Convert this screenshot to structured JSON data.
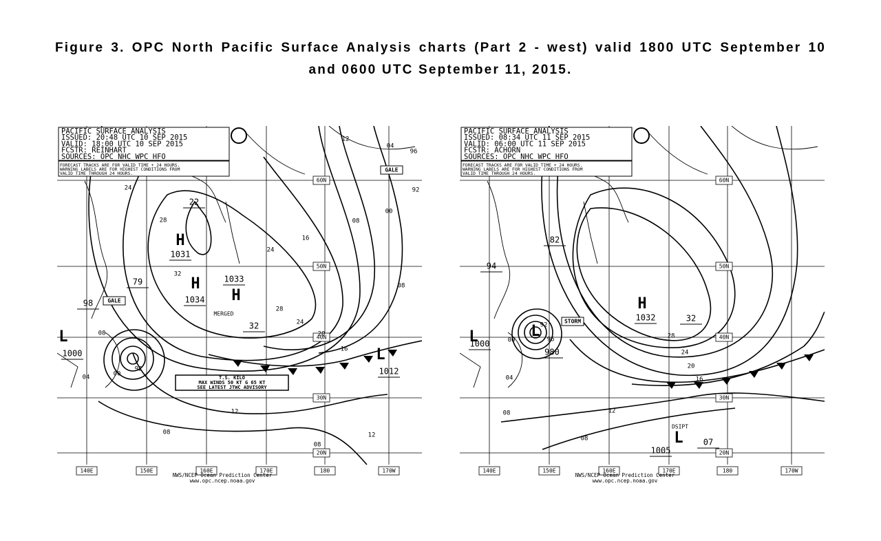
{
  "title": "Figure 3.  OPC North Pacific Surface Analysis charts (Part 2 - west) valid 1800 UTC September 10 and 0600 UTC September 11, 2015.",
  "maps": [
    {
      "header": [
        "PACIFIC SURFACE ANALYSIS",
        "ISSUED: 20:48 UTC 10 SEP 2015",
        "VALID:  18:00 UTC 10 SEP 2015",
        "FCSTR:  REINHART",
        "SOURCES:  OPC NHC WPC HFO"
      ],
      "warning": [
        "FORECAST TRACKS ARE FOR VALID TIME + 24 HOURS.",
        "WARNING LABELS ARE FOR HIGHEST CONDITIONS FROM",
        "VALID TIME THROUGH 24 HOURS."
      ],
      "lat_labels": [
        "60N",
        "50N",
        "40N",
        "30N",
        "20N"
      ],
      "lon_labels": [
        "140E",
        "150E",
        "160E",
        "170E",
        "180",
        "170W"
      ],
      "footer": [
        "NWS/NCEP  Ocean Prediction Center",
        "www.opc.ncep.noaa.gov"
      ],
      "storm_box": [
        "T.S. KILO",
        "MAX WINDS 50 KT G 65 KT",
        "SEE LATEST JTWC ADVISORY"
      ],
      "labels": [
        "H",
        "1031",
        "H",
        "1034",
        "1033",
        "H",
        "MERGED",
        "22",
        "79",
        "98",
        "L",
        "1000",
        "L",
        "1012",
        "32",
        "24",
        "28",
        "32",
        "24",
        "24",
        "28",
        "16",
        "08",
        "08",
        "04",
        "00",
        "96",
        "92",
        "12",
        "20",
        "16",
        "12",
        "12",
        "08",
        "08",
        "04",
        "00",
        "92",
        "08",
        "GALE",
        "GALE"
      ]
    },
    {
      "header": [
        "PACIFIC SURFACE ANALYSIS",
        "ISSUED: 08:34 UTC 11 SEP 2015",
        "VALID:  06:00 UTC 11 SEP 2015",
        "FCSTR:  ACHORN",
        "SOURCES:  OPC NHC WPC HFO"
      ],
      "warning": [
        "FORECAST TRACKS ARE FOR VALID TIME + 24 HOURS.",
        "WARNING LABELS ARE FOR HIGHEST CONDITIONS FROM",
        "VALID TIME THROUGH 24 HOURS."
      ],
      "lat_labels": [
        "60N",
        "50N",
        "40N",
        "30N",
        "20N"
      ],
      "lon_labels": [
        "140E",
        "150E",
        "160E",
        "170E",
        "180",
        "170W"
      ],
      "footer": [
        "NWS/NCEP  Ocean Prediction Center",
        "www.opc.ncep.noaa.gov"
      ],
      "labels": [
        "94",
        "82",
        "L",
        "1000",
        "L",
        "92",
        "980",
        "96",
        "00",
        "H",
        "1032",
        "32",
        "28",
        "24",
        "20",
        "16",
        "12",
        "08",
        "08",
        "04",
        "DSIPT",
        "L",
        "1005",
        "07",
        "STORM"
      ]
    }
  ]
}
